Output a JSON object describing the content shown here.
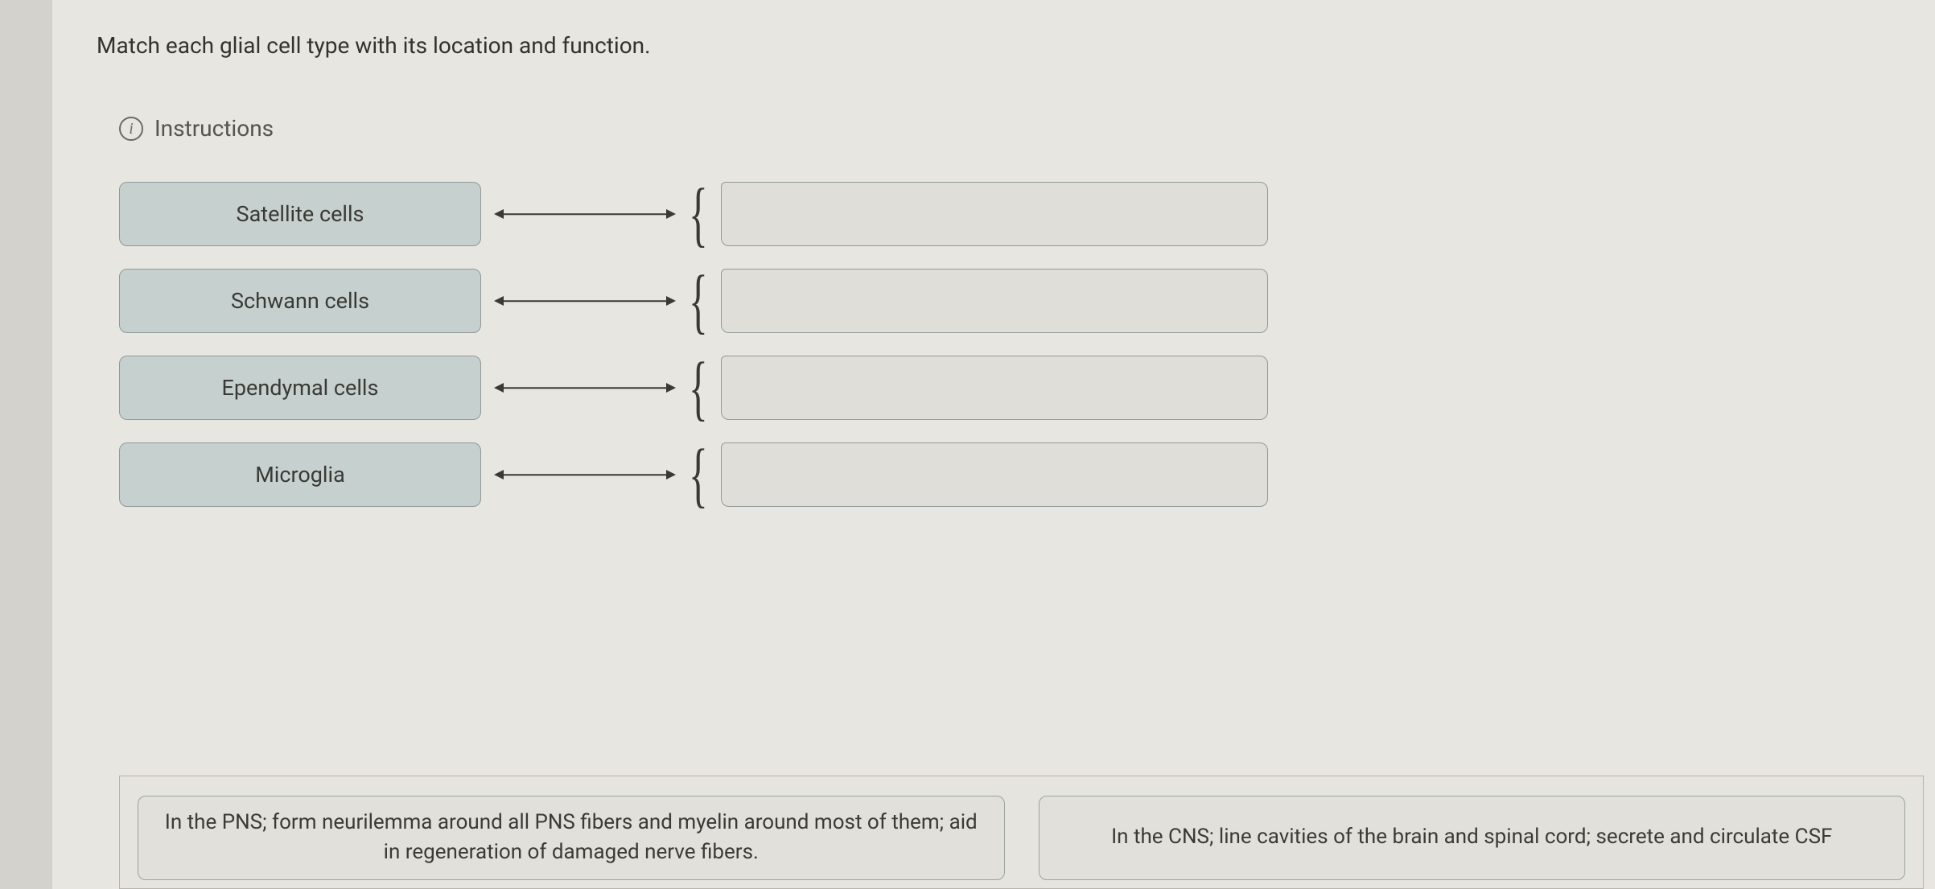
{
  "question": "Match each glial cell type with its location and function.",
  "instructions_label": "Instructions",
  "labels": [
    {
      "name": "Satellite cells"
    },
    {
      "name": "Schwann cells"
    },
    {
      "name": "Ependymal cells"
    },
    {
      "name": "Microglia"
    }
  ],
  "answers": [
    "In the PNS; form neurilemma around all PNS fibers and myelin around most of them; aid in regeneration of damaged nerve fibers.",
    "In the CNS; line cavities of the brain and spinal cord; secrete and circulate CSF"
  ],
  "colors": {
    "page_bg": "#e8e6e1",
    "left_border": "#d4d2cc",
    "card_bg": "#c6d0cf",
    "card_border": "#8f9a98",
    "dropzone_bg": "#e0ded9",
    "text": "#3a3935",
    "bank_border": "#b5b3ac"
  }
}
